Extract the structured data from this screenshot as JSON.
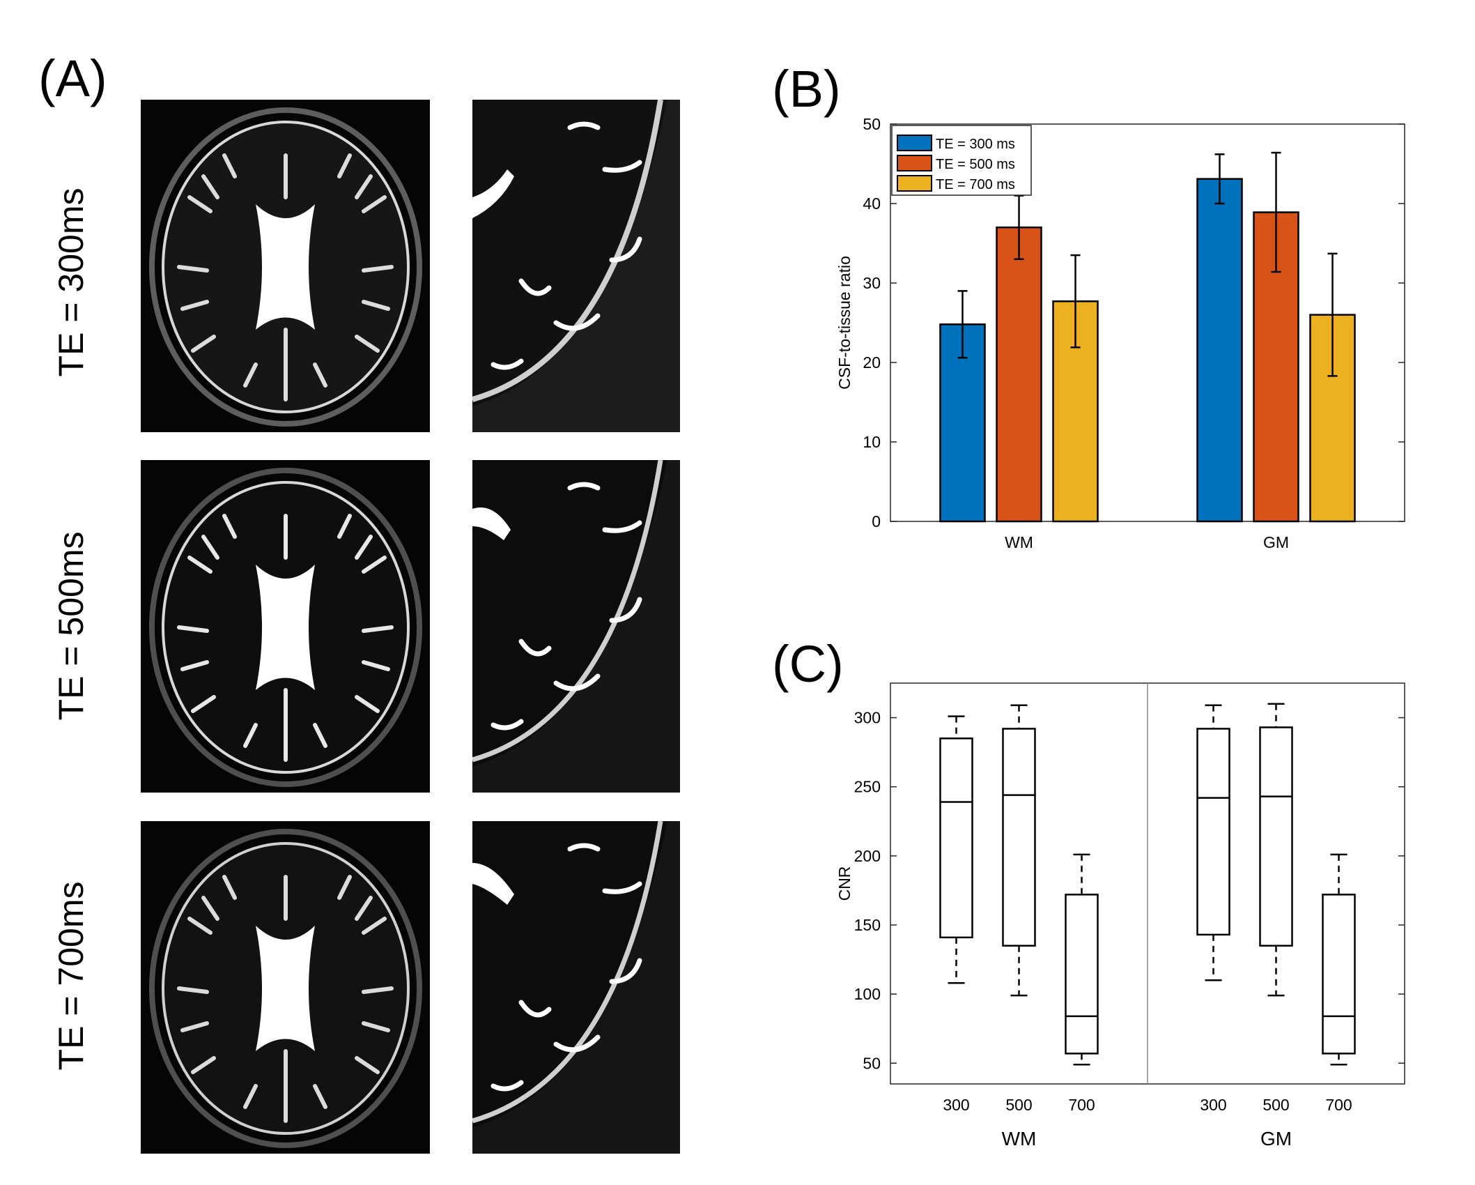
{
  "panels": {
    "a": "(A)",
    "b": "(B)",
    "c": "(C)"
  },
  "mri_rows": [
    {
      "label": "TE = 300ms"
    },
    {
      "label": "TE = 500ms"
    },
    {
      "label": "TE = 700ms"
    }
  ],
  "colors": {
    "te300": "#0072BD",
    "te500": "#D95319",
    "te700": "#EDB120"
  },
  "chart_data": [
    {
      "type": "bar",
      "title": "",
      "categories": [
        "WM",
        "GM"
      ],
      "series": [
        {
          "name": "TE = 300 ms",
          "values": [
            24.8,
            43.1
          ],
          "errors": [
            4.2,
            3.1
          ]
        },
        {
          "name": "TE = 500 ms",
          "values": [
            37.0,
            38.9
          ],
          "errors": [
            4.0,
            7.5
          ]
        },
        {
          "name": "TE = 700 ms",
          "values": [
            27.7,
            26.0
          ],
          "errors": [
            5.8,
            7.7
          ]
        }
      ],
      "xlabel": "",
      "ylabel": "CSF-to-tissue ratio",
      "ylim": [
        0,
        50
      ],
      "yticks": [
        0,
        10,
        20,
        30,
        40,
        50
      ],
      "legend_position": "top-left"
    },
    {
      "type": "box",
      "ylabel": "CNR",
      "ylim": [
        35,
        325
      ],
      "yticks": [
        50,
        100,
        150,
        200,
        250,
        300
      ],
      "groups": [
        {
          "name": "WM",
          "boxes": [
            {
              "label": "300",
              "min": 108,
              "q1": 141,
              "median": 239,
              "q3": 285,
              "max": 301
            },
            {
              "label": "500",
              "min": 99,
              "q1": 135,
              "median": 244,
              "q3": 292,
              "max": 309
            },
            {
              "label": "700",
              "min": 49,
              "q1": 57,
              "median": 84,
              "q3": 172,
              "max": 201
            }
          ]
        },
        {
          "name": "GM",
          "boxes": [
            {
              "label": "300",
              "min": 110,
              "q1": 143,
              "median": 242,
              "q3": 292,
              "max": 309
            },
            {
              "label": "500",
              "min": 99,
              "q1": 135,
              "median": 243,
              "q3": 293,
              "max": 310
            },
            {
              "label": "700",
              "min": 49,
              "q1": 57,
              "median": 84,
              "q3": 172,
              "max": 201
            }
          ]
        }
      ]
    }
  ]
}
